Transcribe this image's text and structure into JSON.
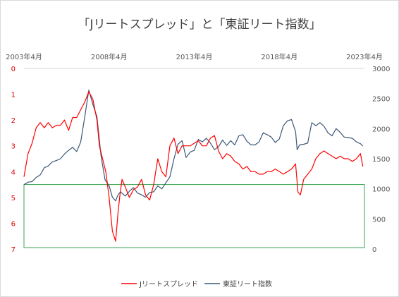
{
  "chart_data": {
    "type": "line",
    "title": "「Jリートスプレッド」と「東証リート指数」",
    "x_ticks": [
      "2003年4月",
      "2008年4月",
      "2013年4月",
      "2018年4月",
      "2023年4月"
    ],
    "x_range": [
      2003.25,
      2024.25
    ],
    "y_left": {
      "ticks": [
        "0",
        "1",
        "2",
        "3",
        "4",
        "5",
        "6",
        "7"
      ],
      "range": [
        0,
        7
      ],
      "inverted": true,
      "color": "#e00000"
    },
    "y_right": {
      "ticks": [
        "0",
        "500",
        "1000",
        "1500",
        "2000",
        "2500",
        "3000"
      ],
      "range": [
        0,
        3000
      ],
      "color": "#1f3864"
    },
    "highlight_box": {
      "y_left_range": [
        4.5,
        7
      ],
      "color": "#3aa655"
    },
    "legend_position": "bottom",
    "series": [
      {
        "name": "Jリートスプレッド",
        "axis": "left",
        "color": "#ff0000",
        "x": [
          2003.25,
          2003.5,
          2003.75,
          2004.0,
          2004.25,
          2004.5,
          2004.75,
          2005.0,
          2005.25,
          2005.5,
          2005.75,
          2006.0,
          2006.25,
          2006.5,
          2006.75,
          2007.0,
          2007.25,
          2007.5,
          2007.75,
          2007.9,
          2008.1,
          2008.3,
          2008.5,
          2008.7,
          2008.9,
          2009.05,
          2009.15,
          2009.3,
          2009.5,
          2009.75,
          2010.0,
          2010.25,
          2010.5,
          2010.75,
          2011.0,
          2011.25,
          2011.5,
          2011.75,
          2012.0,
          2012.25,
          2012.5,
          2012.75,
          2013.0,
          2013.2,
          2013.5,
          2013.75,
          2014.0,
          2014.25,
          2014.5,
          2014.75,
          2015.0,
          2015.25,
          2015.5,
          2015.75,
          2016.0,
          2016.25,
          2016.5,
          2016.75,
          2017.0,
          2017.25,
          2017.5,
          2017.75,
          2018.0,
          2018.25,
          2018.5,
          2018.75,
          2019.0,
          2019.25,
          2019.5,
          2019.75,
          2020.0,
          2020.15,
          2020.3,
          2020.5,
          2020.75,
          2021.0,
          2021.25,
          2021.5,
          2021.75,
          2022.0,
          2022.25,
          2022.5,
          2022.75,
          2023.0,
          2023.25,
          2023.5,
          2023.75,
          2024.0,
          2024.15
        ],
        "values": [
          4.2,
          3.3,
          2.9,
          2.3,
          2.1,
          2.3,
          2.1,
          2.3,
          2.2,
          2.2,
          2.0,
          2.4,
          1.9,
          1.9,
          1.6,
          1.3,
          0.9,
          1.2,
          2.0,
          3.0,
          3.5,
          4.0,
          5.0,
          6.3,
          6.7,
          5.6,
          5.0,
          4.3,
          4.6,
          5.0,
          4.7,
          4.6,
          4.3,
          4.9,
          5.1,
          4.5,
          3.5,
          4.0,
          4.2,
          3.0,
          2.7,
          3.3,
          3.0,
          3.0,
          3.0,
          2.9,
          2.8,
          3.0,
          3.0,
          2.7,
          2.6,
          3.2,
          3.5,
          3.3,
          3.4,
          3.6,
          3.7,
          3.9,
          3.8,
          4.0,
          4.0,
          4.1,
          4.1,
          4.0,
          4.0,
          3.9,
          4.0,
          4.1,
          4.0,
          3.9,
          3.7,
          4.8,
          4.9,
          4.3,
          4.1,
          3.9,
          3.5,
          3.3,
          3.2,
          3.3,
          3.4,
          3.5,
          3.4,
          3.5,
          3.5,
          3.6,
          3.5,
          3.3,
          3.8
        ]
      },
      {
        "name": "東証リート指数",
        "axis": "right",
        "color": "#3b5878",
        "x": [
          2003.25,
          2003.5,
          2003.75,
          2004.0,
          2004.25,
          2004.5,
          2004.75,
          2005.0,
          2005.25,
          2005.5,
          2005.75,
          2006.0,
          2006.25,
          2006.5,
          2006.75,
          2007.0,
          2007.25,
          2007.5,
          2007.75,
          2008.0,
          2008.25,
          2008.5,
          2008.7,
          2008.9,
          2009.05,
          2009.2,
          2009.5,
          2009.75,
          2010.0,
          2010.25,
          2010.5,
          2010.75,
          2011.0,
          2011.25,
          2011.5,
          2011.75,
          2012.0,
          2012.25,
          2012.5,
          2012.75,
          2013.0,
          2013.25,
          2013.5,
          2013.75,
          2014.0,
          2014.25,
          2014.5,
          2014.75,
          2015.0,
          2015.25,
          2015.5,
          2015.75,
          2016.0,
          2016.25,
          2016.5,
          2016.75,
          2017.0,
          2017.25,
          2017.5,
          2017.75,
          2018.0,
          2018.25,
          2018.5,
          2018.75,
          2019.0,
          2019.25,
          2019.5,
          2019.75,
          2020.0,
          2020.1,
          2020.25,
          2020.5,
          2020.75,
          2021.0,
          2021.25,
          2021.5,
          2021.75,
          2022.0,
          2022.25,
          2022.5,
          2022.75,
          2023.0,
          2023.25,
          2023.5,
          2023.75,
          2024.0,
          2024.15
        ],
        "values": [
          1070,
          1110,
          1120,
          1190,
          1230,
          1350,
          1380,
          1450,
          1470,
          1500,
          1580,
          1640,
          1690,
          1620,
          1780,
          2200,
          2640,
          2400,
          2200,
          1550,
          1150,
          1050,
          860,
          800,
          900,
          950,
          880,
          960,
          1020,
          930,
          900,
          860,
          940,
          950,
          1050,
          1000,
          1100,
          1200,
          1500,
          1740,
          1800,
          1520,
          1610,
          1640,
          1820,
          1780,
          1840,
          1760,
          1650,
          1700,
          1810,
          1720,
          1800,
          1730,
          1880,
          1900,
          1790,
          1730,
          1730,
          1780,
          1930,
          1900,
          1860,
          1770,
          1830,
          2050,
          2130,
          2150,
          1950,
          1650,
          1730,
          1740,
          1760,
          2100,
          2050,
          2100,
          2040,
          1930,
          1880,
          2000,
          1940,
          1860,
          1850,
          1840,
          1780,
          1750,
          1710
        ]
      }
    ]
  }
}
